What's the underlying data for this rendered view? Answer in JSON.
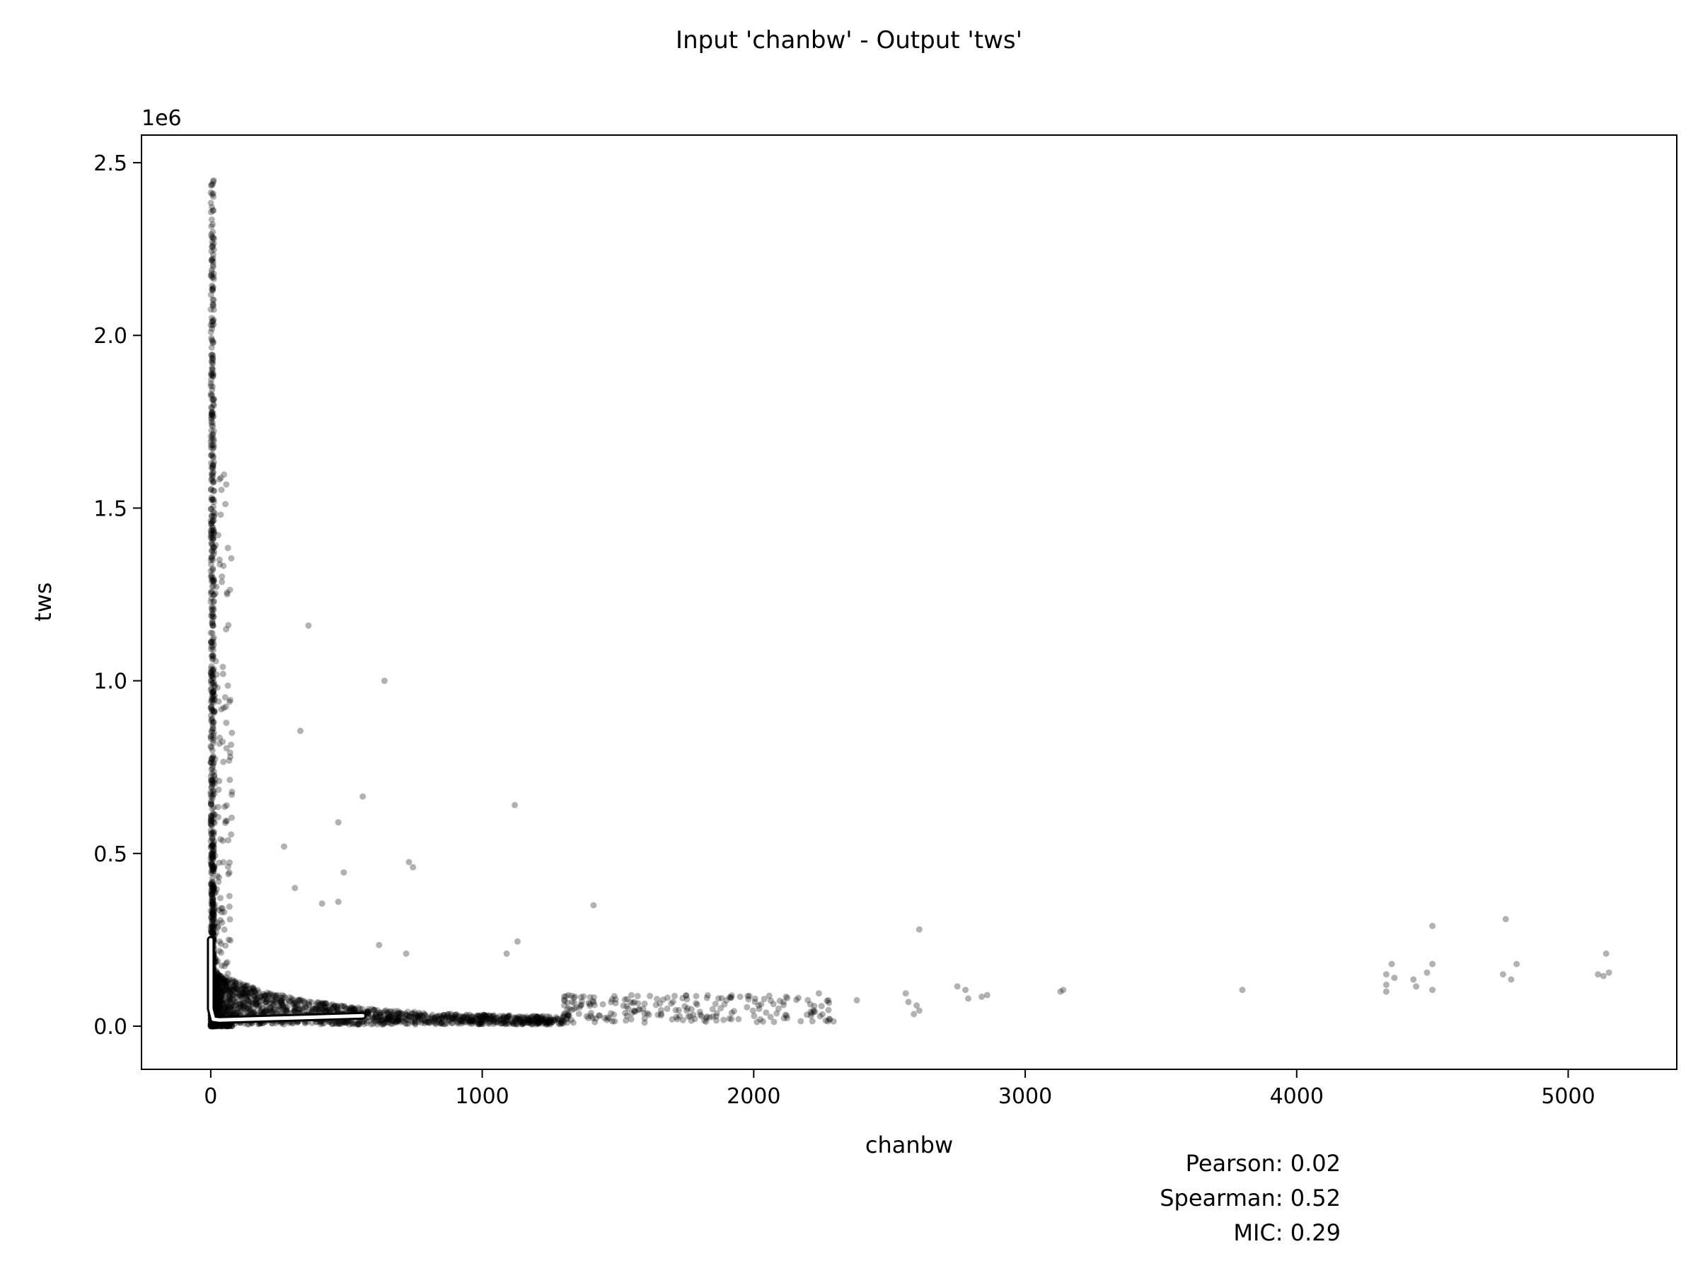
{
  "chart_data": {
    "type": "scatter",
    "title": "Input 'chanbw' - Output 'tws'",
    "xlabel": "chanbw",
    "ylabel": "tws",
    "y_offset_label": "1e6",
    "xlim": [
      -255,
      5400
    ],
    "ylim": [
      -0.125,
      2.58
    ],
    "y_scale_note": "y values in units of 1e6",
    "xticks": [
      0,
      1000,
      2000,
      3000,
      4000,
      5000
    ],
    "xtick_labels": [
      "0",
      "1000",
      "2000",
      "3000",
      "4000",
      "5000"
    ],
    "yticks": [
      0.0,
      0.5,
      1.0,
      1.5,
      2.0,
      2.5
    ],
    "ytick_labels": [
      "0.0",
      "0.5",
      "1.0",
      "1.5",
      "2.0",
      "2.5"
    ],
    "grid": false,
    "marker_color": "#000000",
    "marker_alpha": 0.3,
    "stats": [
      {
        "label": "Pearson: 0.02"
      },
      {
        "label": "Spearman: 0.52"
      },
      {
        "label": "MIC: 0.29"
      }
    ],
    "trend_line": {
      "x": [
        0,
        0,
        10,
        30,
        120,
        300,
        560
      ],
      "y": [
        0.25,
        0.05,
        0.02,
        0.018,
        0.02,
        0.024,
        0.03
      ]
    },
    "outliers": [
      {
        "x": 360,
        "y": 1.16
      },
      {
        "x": 640,
        "y": 1.0
      },
      {
        "x": 330,
        "y": 0.855
      },
      {
        "x": 1120,
        "y": 0.64
      },
      {
        "x": 560,
        "y": 0.665
      },
      {
        "x": 470,
        "y": 0.59
      },
      {
        "x": 270,
        "y": 0.52
      },
      {
        "x": 730,
        "y": 0.475
      },
      {
        "x": 745,
        "y": 0.46
      },
      {
        "x": 490,
        "y": 0.445
      },
      {
        "x": 310,
        "y": 0.4
      },
      {
        "x": 470,
        "y": 0.36
      },
      {
        "x": 410,
        "y": 0.355
      },
      {
        "x": 1410,
        "y": 0.35
      },
      {
        "x": 2610,
        "y": 0.28
      },
      {
        "x": 1130,
        "y": 0.245
      },
      {
        "x": 1090,
        "y": 0.21
      },
      {
        "x": 620,
        "y": 0.235
      },
      {
        "x": 720,
        "y": 0.21
      },
      {
        "x": 2750,
        "y": 0.115
      },
      {
        "x": 2780,
        "y": 0.105
      },
      {
        "x": 2790,
        "y": 0.08
      },
      {
        "x": 2840,
        "y": 0.085
      },
      {
        "x": 2860,
        "y": 0.09
      },
      {
        "x": 3130,
        "y": 0.1
      },
      {
        "x": 3140,
        "y": 0.105
      },
      {
        "x": 3800,
        "y": 0.105
      },
      {
        "x": 2560,
        "y": 0.095
      },
      {
        "x": 2570,
        "y": 0.07
      },
      {
        "x": 2600,
        "y": 0.06
      },
      {
        "x": 2610,
        "y": 0.045
      },
      {
        "x": 2590,
        "y": 0.035
      },
      {
        "x": 4330,
        "y": 0.15
      },
      {
        "x": 4330,
        "y": 0.12
      },
      {
        "x": 4330,
        "y": 0.1
      },
      {
        "x": 4350,
        "y": 0.18
      },
      {
        "x": 4360,
        "y": 0.14
      },
      {
        "x": 4430,
        "y": 0.135
      },
      {
        "x": 4440,
        "y": 0.115
      },
      {
        "x": 4480,
        "y": 0.155
      },
      {
        "x": 4500,
        "y": 0.29
      },
      {
        "x": 4500,
        "y": 0.18
      },
      {
        "x": 4500,
        "y": 0.105
      },
      {
        "x": 4770,
        "y": 0.31
      },
      {
        "x": 4760,
        "y": 0.15
      },
      {
        "x": 4790,
        "y": 0.135
      },
      {
        "x": 4810,
        "y": 0.18
      },
      {
        "x": 5140,
        "y": 0.21
      },
      {
        "x": 5110,
        "y": 0.15
      },
      {
        "x": 5130,
        "y": 0.145
      },
      {
        "x": 5150,
        "y": 0.155
      },
      {
        "x": 2380,
        "y": 0.075
      },
      {
        "x": 2240,
        "y": 0.095
      },
      {
        "x": 2110,
        "y": 0.07
      },
      {
        "x": 2020,
        "y": 0.05
      },
      {
        "x": 1950,
        "y": 0.085
      },
      {
        "x": 1900,
        "y": 0.075
      }
    ],
    "clusters": [
      {
        "x_range": [
          0,
          12
        ],
        "y_range": [
          0.0,
          2.46
        ],
        "count": 900,
        "dist": "vertical"
      },
      {
        "x_range": [
          12,
          80
        ],
        "y_range": [
          0.0,
          1.6
        ],
        "count": 260,
        "dist": "vertical_decay"
      },
      {
        "x_range": [
          20,
          1300
        ],
        "y_range": [
          0.0,
          0.15
        ],
        "count": 1400,
        "dist": "horizontal_decay"
      },
      {
        "x_range": [
          1300,
          2300
        ],
        "y_range": [
          0.01,
          0.09
        ],
        "count": 220,
        "dist": "band"
      }
    ]
  }
}
